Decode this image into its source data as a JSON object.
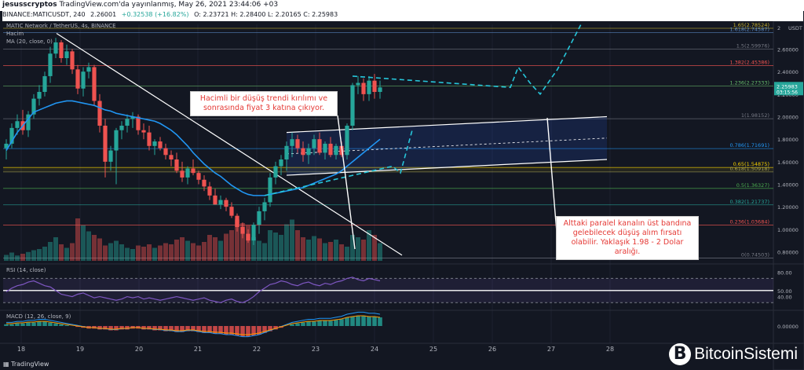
{
  "header": {
    "author": "jesusscryptos",
    "published": "TradingView.com'da yayınlanmış, May 26, 2021 23:44:06 +03",
    "symbol": "BINANCE:MATICUSDT, 240",
    "open": "2.26001",
    "change": "+0.32538 (+16.82%)",
    "ohlc": "O: 2.23721  H: 2.28400  L: 2.20165  C: 2.25983",
    "pair_title": "MATIC Network / TetherUS, 4s, BINANCE",
    "volume_label": "Hacim",
    "ma_label": "MA (20, close, 0)"
  },
  "chart_data": {
    "type": "candlestick",
    "currency": "USDT",
    "x_ticks": [
      "18",
      "19",
      "20",
      "21",
      "22",
      "23",
      "24",
      "25",
      "26",
      "27",
      "28"
    ],
    "y_ticks": [
      0.8,
      1.0,
      1.2,
      1.4,
      1.6,
      1.8,
      2.0,
      2.2,
      2.4,
      2.6
    ],
    "y_top_label": "2",
    "ylim": [
      0.72,
      2.82
    ],
    "candles": [
      [
        1.72,
        1.8,
        1.62,
        1.76
      ],
      [
        1.76,
        1.94,
        1.72,
        1.9
      ],
      [
        1.9,
        2.02,
        1.84,
        1.96
      ],
      [
        1.96,
        2.06,
        1.84,
        1.88
      ],
      [
        1.88,
        2.05,
        1.82,
        2.02
      ],
      [
        2.02,
        2.2,
        1.98,
        2.16
      ],
      [
        2.16,
        2.28,
        2.1,
        2.22
      ],
      [
        2.22,
        2.4,
        2.18,
        2.36
      ],
      [
        2.36,
        2.62,
        2.3,
        2.56
      ],
      [
        2.56,
        2.7,
        2.52,
        2.66
      ],
      [
        2.66,
        2.68,
        2.48,
        2.52
      ],
      [
        2.52,
        2.64,
        2.46,
        2.58
      ],
      [
        2.58,
        2.6,
        2.38,
        2.42
      ],
      [
        2.42,
        2.46,
        2.2,
        2.25
      ],
      [
        2.25,
        2.44,
        2.18,
        2.4
      ],
      [
        2.4,
        2.48,
        2.34,
        2.44
      ],
      [
        2.44,
        2.46,
        2.1,
        2.14
      ],
      [
        2.14,
        2.2,
        1.86,
        1.92
      ],
      [
        1.92,
        1.98,
        1.46,
        1.6
      ],
      [
        1.6,
        1.74,
        1.52,
        1.7
      ],
      [
        1.7,
        1.9,
        1.4,
        1.88
      ],
      [
        1.88,
        1.96,
        1.8,
        1.92
      ],
      [
        1.92,
        2.02,
        1.86,
        1.98
      ],
      [
        1.98,
        2.04,
        1.9,
        2.0
      ],
      [
        2.0,
        2.02,
        1.84,
        1.88
      ],
      [
        1.88,
        1.94,
        1.8,
        1.86
      ],
      [
        1.86,
        1.92,
        1.7,
        1.74
      ],
      [
        1.74,
        1.8,
        1.66,
        1.78
      ],
      [
        1.78,
        1.82,
        1.7,
        1.72
      ],
      [
        1.72,
        1.76,
        1.62,
        1.66
      ],
      [
        1.66,
        1.7,
        1.56,
        1.62
      ],
      [
        1.62,
        1.68,
        1.5,
        1.52
      ],
      [
        1.52,
        1.6,
        1.42,
        1.46
      ],
      [
        1.46,
        1.56,
        1.4,
        1.54
      ],
      [
        1.54,
        1.62,
        1.48,
        1.5
      ],
      [
        1.5,
        1.52,
        1.4,
        1.44
      ],
      [
        1.44,
        1.48,
        1.34,
        1.38
      ],
      [
        1.38,
        1.42,
        1.26,
        1.3
      ],
      [
        1.3,
        1.36,
        1.22,
        1.22
      ],
      [
        1.22,
        1.3,
        1.18,
        1.26
      ],
      [
        1.26,
        1.28,
        1.16,
        1.2
      ],
      [
        1.2,
        1.24,
        1.1,
        1.12
      ],
      [
        1.12,
        1.14,
        0.98,
        1.02
      ],
      [
        1.02,
        1.06,
        0.92,
        0.96
      ],
      [
        0.96,
        1.0,
        0.88,
        0.9
      ],
      [
        0.9,
        1.06,
        0.86,
        1.04
      ],
      [
        1.04,
        1.2,
        0.96,
        1.16
      ],
      [
        1.16,
        1.28,
        1.08,
        1.24
      ],
      [
        1.24,
        1.5,
        1.2,
        1.46
      ],
      [
        1.46,
        1.6,
        1.4,
        1.56
      ],
      [
        1.56,
        1.66,
        1.48,
        1.62
      ],
      [
        1.62,
        1.78,
        1.52,
        1.74
      ],
      [
        1.74,
        1.86,
        1.64,
        1.8
      ],
      [
        1.8,
        1.84,
        1.68,
        1.72
      ],
      [
        1.72,
        1.78,
        1.6,
        1.66
      ],
      [
        1.66,
        1.76,
        1.58,
        1.72
      ],
      [
        1.72,
        1.84,
        1.66,
        1.8
      ],
      [
        1.8,
        1.86,
        1.66,
        1.68
      ],
      [
        1.68,
        1.78,
        1.62,
        1.76
      ],
      [
        1.76,
        1.82,
        1.64,
        1.66
      ],
      [
        1.66,
        1.76,
        1.62,
        1.74
      ],
      [
        1.74,
        1.78,
        1.64,
        1.66
      ],
      [
        1.66,
        1.94,
        1.62,
        1.92
      ],
      [
        1.92,
        2.3,
        1.88,
        2.28
      ],
      [
        2.28,
        2.36,
        2.2,
        2.3
      ],
      [
        2.3,
        2.34,
        2.14,
        2.2
      ],
      [
        2.2,
        2.36,
        2.14,
        2.32
      ],
      [
        2.32,
        2.38,
        2.16,
        2.22
      ],
      [
        2.22,
        2.32,
        2.16,
        2.26
      ]
    ],
    "volume": [
      10,
      14,
      9,
      12,
      15,
      18,
      20,
      24,
      32,
      40,
      28,
      22,
      30,
      72,
      60,
      50,
      44,
      38,
      26,
      30,
      34,
      28,
      22,
      20,
      26,
      24,
      28,
      22,
      26,
      30,
      28,
      36,
      40,
      34,
      30,
      26,
      32,
      44,
      40,
      34,
      46,
      52,
      70,
      64,
      60,
      40,
      34,
      30,
      52,
      48,
      44,
      62,
      70,
      52,
      40,
      36,
      42,
      38,
      30,
      32,
      36,
      28,
      24,
      44,
      40,
      36,
      52,
      44,
      30
    ],
    "fib_levels": [
      {
        "ratio": "1.65",
        "label": "1.65(2.78524)",
        "value": 2.785,
        "color": "#c8b430"
      },
      {
        "ratio": "1.618",
        "label": "1.618(2.74587)",
        "value": 2.746,
        "color": "#5b8cc8"
      },
      {
        "ratio": "1.5",
        "label": "1.5(2.59976)",
        "value": 2.6,
        "color": "#787b86"
      },
      {
        "ratio": "1.382",
        "label": "1.382(2.45386)",
        "value": 2.454,
        "color": "#ef5350"
      },
      {
        "ratio": "1.236",
        "label": "1.236(2.27333)",
        "value": 2.273,
        "color": "#66bb6a"
      },
      {
        "ratio": "1",
        "label": "1(1.98152)",
        "value": 1.982,
        "color": "#787b86"
      },
      {
        "ratio": "0.786",
        "label": "0.786(1.71691)",
        "value": 1.717,
        "color": "#2196f3"
      },
      {
        "ratio": "0.65",
        "label": "0.65(1.54875)",
        "value": 1.549,
        "color": "#f5d000"
      },
      {
        "ratio": "0.618",
        "label": "0.618(1.50918)",
        "value": 1.509,
        "color": "#9e9e5a"
      },
      {
        "ratio": "0.5",
        "label": "0.5(1.36327)",
        "value": 1.363,
        "color": "#4caf50"
      },
      {
        "ratio": "0.382",
        "label": "0.382(1.21737)",
        "value": 1.217,
        "color": "#26a69a"
      },
      {
        "ratio": "0.236",
        "label": "0.236(1.03684)",
        "value": 1.037,
        "color": "#ef5350"
      },
      {
        "ratio": "0",
        "label": "0(0.74503)",
        "value": 0.745,
        "color": "#787b86"
      }
    ],
    "last_price": "2.25983",
    "countdown": "03:15:56",
    "rsi": {
      "label": "RSI (14, close)",
      "ticks": [
        "80.00",
        "50.00",
        "40.00"
      ],
      "upper": 70,
      "lower": 30,
      "values": [
        48,
        54,
        58,
        60,
        64,
        66,
        62,
        58,
        56,
        50,
        44,
        42,
        40,
        44,
        46,
        42,
        38,
        40,
        38,
        36,
        34,
        36,
        40,
        38,
        40,
        36,
        38,
        36,
        34,
        36,
        38,
        40,
        38,
        36,
        34,
        36,
        38,
        34,
        32,
        30,
        34,
        36,
        32,
        30,
        34,
        40,
        48,
        54,
        60,
        62,
        66,
        64,
        60,
        58,
        62,
        64,
        60,
        58,
        62,
        60,
        64,
        66,
        70,
        72,
        68,
        66,
        70,
        68,
        66
      ]
    },
    "macd": {
      "label": "MACD (12, 26, close, 9)",
      "tick": "0.00000",
      "values": [
        2,
        2,
        3,
        3,
        4,
        4,
        5,
        5,
        4,
        3,
        2,
        1,
        0,
        -1,
        -2,
        -3,
        -3,
        -4,
        -4,
        -5,
        -5,
        -4,
        -4,
        -3,
        -3,
        -4,
        -4,
        -5,
        -5,
        -6,
        -6,
        -7,
        -7,
        -6,
        -6,
        -7,
        -8,
        -8,
        -9,
        -9,
        -10,
        -10,
        -11,
        -12,
        -12,
        -11,
        -10,
        -8,
        -6,
        -4,
        -2,
        0,
        2,
        3,
        4,
        5,
        5,
        6,
        6,
        6,
        7,
        8,
        10,
        11,
        12,
        12,
        11,
        11,
        10
      ]
    },
    "ma20": [
      1.7,
      1.78,
      1.86,
      1.92,
      1.98,
      2.04,
      2.06,
      2.08,
      2.1,
      2.12,
      2.13,
      2.14,
      2.14,
      2.13,
      2.12,
      2.11,
      2.1,
      2.08,
      2.06,
      2.05,
      2.03,
      2.02,
      2.01,
      2.0,
      1.99,
      1.98,
      1.97,
      1.96,
      1.94,
      1.91,
      1.88,
      1.84,
      1.79,
      1.74,
      1.68,
      1.63,
      1.58,
      1.54,
      1.5,
      1.47,
      1.43,
      1.39,
      1.36,
      1.33,
      1.31,
      1.3,
      1.3,
      1.3,
      1.31,
      1.32,
      1.33,
      1.34,
      1.35,
      1.36,
      1.37,
      1.39,
      1.41,
      1.43,
      1.45,
      1.47,
      1.49,
      1.52,
      1.56,
      1.6,
      1.64,
      1.68,
      1.72,
      1.76,
      1.8
    ]
  },
  "annotations": {
    "top": "Hacimli bir düşüş trendi kırılımı ve sonrasında fiyat 3 katına çıkıyor.",
    "bottom": "Alttaki paralel kanalın üst bandına gelebilecek düşüş alım fırsatı olabilir. Yaklaşık 1.98 - 2 Dolar aralığı."
  },
  "footer": {
    "tradingview": "TradingView",
    "watermark": "BitcoinSistemi",
    "watermark_logo": "B"
  }
}
